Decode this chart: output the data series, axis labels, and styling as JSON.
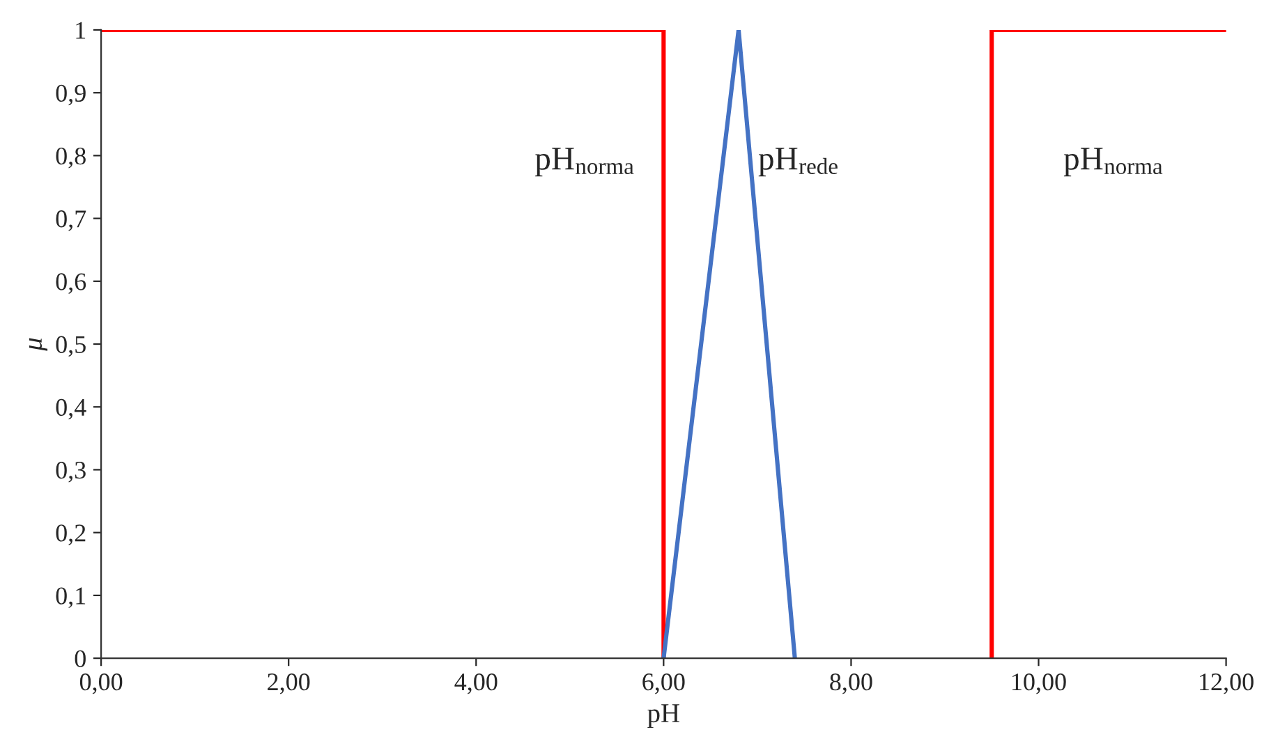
{
  "chart_data": {
    "type": "line",
    "xlabel": "pH",
    "ylabel": "μ",
    "series": [
      {
        "color": "#ff0000",
        "x": [
          0,
          6,
          6
        ],
        "values": [
          1,
          1,
          0
        ]
      },
      {
        "color": "#ff0000",
        "x": [
          9.5,
          9.5,
          12
        ],
        "values": [
          0,
          1,
          1
        ]
      },
      {
        "color": "#4472c4",
        "x": [
          6,
          6.8,
          7.4
        ],
        "values": [
          0,
          1,
          0
        ]
      }
    ],
    "xlim": [
      0,
      12
    ],
    "ylim": [
      0,
      1
    ],
    "xticks": [
      {
        "value": 0,
        "label": "0,00"
      },
      {
        "value": 2,
        "label": "2,00"
      },
      {
        "value": 4,
        "label": "4,00"
      },
      {
        "value": 6,
        "label": "6,00"
      },
      {
        "value": 8,
        "label": "8,00"
      },
      {
        "value": 10,
        "label": "10,00"
      },
      {
        "value": 12,
        "label": "12,00"
      }
    ],
    "yticks": [
      0,
      {
        "value": 0.1,
        "label": "0,1"
      },
      {
        "value": 0.2,
        "label": "0,2"
      },
      {
        "value": 0.3,
        "label": "0,3"
      },
      {
        "value": 0.4,
        "label": "0,4"
      },
      {
        "value": 0.5,
        "label": "0,5"
      },
      {
        "value": 0.6,
        "label": "0,6"
      },
      {
        "value": 0.7,
        "label": "0,7"
      },
      {
        "value": 0.8,
        "label": "0,8"
      },
      {
        "value": 0.9,
        "label": "0,9"
      },
      1
    ],
    "annotations": [
      "pH$_{norma}$",
      "pH$_{rede}$",
      "pH$_{norma}$"
    ],
    "grid": false,
    "legend": false,
    "line_style": "solid",
    "marker": "none"
  }
}
